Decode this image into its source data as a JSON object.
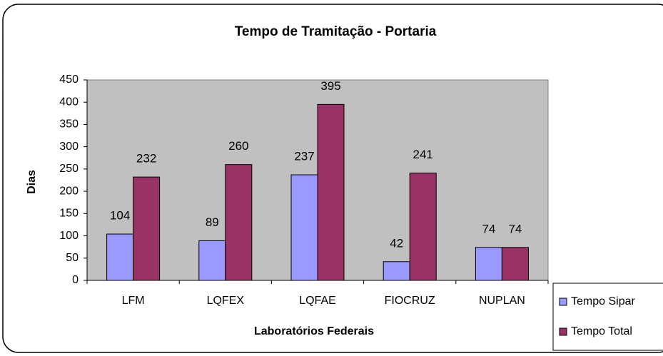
{
  "chart_data": {
    "type": "bar",
    "title": "Tempo de Tramitação - Portaria",
    "x_label": "Laboratórios Federais",
    "y_label": "Dias",
    "categories": [
      "LFM",
      "LQFEX",
      "LQFAE",
      "FIOCRUZ",
      "NUPLAN"
    ],
    "series": [
      {
        "name": "Tempo Sipar",
        "color": "#9999ff",
        "values": [
          104,
          89,
          237,
          42,
          74
        ]
      },
      {
        "name": "Tempo Total",
        "color": "#993366",
        "values": [
          232,
          260,
          395,
          241,
          74
        ]
      }
    ],
    "ylim": [
      0,
      450
    ],
    "yticks": [
      0,
      50,
      100,
      150,
      200,
      250,
      300,
      350,
      400,
      450
    ],
    "grid": false,
    "plot_background": "#c0c0c0",
    "legend": "right"
  }
}
